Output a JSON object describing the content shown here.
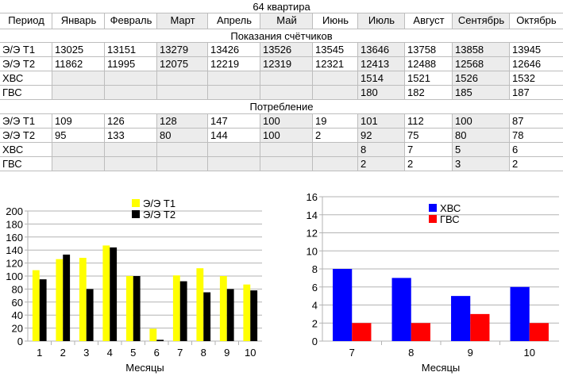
{
  "sheet": {
    "title": "64 квартира",
    "header_label": "Период",
    "months": [
      "Январь",
      "Февраль",
      "Март",
      "Апрель",
      "Май",
      "Июнь",
      "Июль",
      "Август",
      "Сентябрь",
      "Октябрь"
    ],
    "section_readings": "Показания счётчиков",
    "section_consumption": "Потребление",
    "readings": [
      {
        "label": "Э/Э Т1",
        "values": [
          "13025",
          "13151",
          "13279",
          "13426",
          "13526",
          "13545",
          "13646",
          "13758",
          "13858",
          "13945"
        ]
      },
      {
        "label": "Э/Э Т2",
        "values": [
          "11862",
          "11995",
          "12075",
          "12219",
          "12319",
          "12321",
          "12413",
          "12488",
          "12568",
          "12646"
        ]
      },
      {
        "label": "ХВС",
        "values": [
          "",
          "",
          "",
          "",
          "",
          "",
          "1514",
          "1521",
          "1526",
          "1532"
        ]
      },
      {
        "label": "ГВС",
        "values": [
          "",
          "",
          "",
          "",
          "",
          "",
          "180",
          "182",
          "185",
          "187"
        ]
      }
    ],
    "consumption": [
      {
        "label": "Э/Э Т1",
        "values": [
          "109",
          "126",
          "128",
          "147",
          "100",
          "19",
          "101",
          "112",
          "100",
          "87"
        ]
      },
      {
        "label": "Э/Э Т2",
        "values": [
          "95",
          "133",
          "80",
          "144",
          "100",
          "2",
          "92",
          "75",
          "80",
          "78"
        ]
      },
      {
        "label": "ХВС",
        "values": [
          "",
          "",
          "",
          "",
          "",
          "",
          "8",
          "7",
          "5",
          "6"
        ]
      },
      {
        "label": "ГВС",
        "values": [
          "",
          "",
          "",
          "",
          "",
          "",
          "2",
          "2",
          "3",
          "2"
        ]
      }
    ]
  },
  "chart_data": [
    {
      "type": "bar",
      "categories": [
        "1",
        "2",
        "3",
        "4",
        "5",
        "6",
        "7",
        "8",
        "9",
        "10"
      ],
      "series": [
        {
          "name": "Э/Э Т1",
          "color": "#ffff00",
          "values": [
            109,
            126,
            128,
            147,
            100,
            19,
            101,
            112,
            100,
            87
          ]
        },
        {
          "name": "Э/Э Т2",
          "color": "#000000",
          "values": [
            95,
            133,
            80,
            144,
            100,
            2,
            92,
            75,
            80,
            78
          ]
        }
      ],
      "xlabel": "Месяцы",
      "ylabel": "",
      "ylim": [
        0,
        200
      ],
      "yticks": [
        "0",
        "20",
        "40",
        "60",
        "80",
        "100",
        "120",
        "140",
        "160",
        "180",
        "200"
      ],
      "grid": "horizontal",
      "legend": "top-center"
    },
    {
      "type": "bar",
      "categories": [
        "7",
        "8",
        "9",
        "10"
      ],
      "series": [
        {
          "name": "ХВС",
          "color": "#0000ff",
          "values": [
            8,
            7,
            5,
            6
          ]
        },
        {
          "name": "ГВС",
          "color": "#ff0000",
          "values": [
            2,
            2,
            3,
            2
          ]
        }
      ],
      "xlabel": "Месяцы",
      "ylabel": "",
      "ylim": [
        0,
        16
      ],
      "yticks": [
        "0",
        "2",
        "4",
        "6",
        "8",
        "10",
        "12",
        "14",
        "16"
      ],
      "grid": "horizontal",
      "legend": "top-center"
    }
  ]
}
